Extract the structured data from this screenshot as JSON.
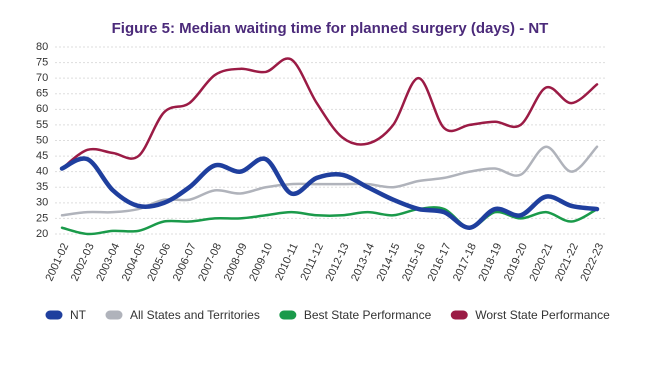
{
  "chart_data": {
    "type": "line",
    "title": "Figure 5: Median waiting time for planned surgery (days) - NT",
    "categories": [
      "2001-02",
      "2002-03",
      "2003-04",
      "2004-05",
      "2005-06",
      "2006-07",
      "2007-08",
      "2008-09",
      "2009-10",
      "2010-11",
      "2011-12",
      "2012-13",
      "2013-14",
      "2014-15",
      "2015-16",
      "2016-17",
      "2017-18",
      "2018-19",
      "2019-20",
      "2020-21",
      "2021-22",
      "2022-23"
    ],
    "series": [
      {
        "name": "NT",
        "color": "#1f3f9e",
        "values": [
          41,
          44,
          34,
          29,
          30,
          35,
          42,
          40,
          44,
          33,
          38,
          39,
          35,
          31,
          28,
          27,
          22,
          28,
          26,
          32,
          29,
          28
        ]
      },
      {
        "name": "All States and Territories",
        "color": "#b0b3bb",
        "values": [
          26,
          27,
          27,
          28,
          31,
          31,
          34,
          33,
          35,
          36,
          36,
          36,
          36,
          35,
          37,
          38,
          40,
          41,
          39,
          48,
          40,
          48
        ]
      },
      {
        "name": "Best State Performance",
        "color": "#1a9a4a",
        "values": [
          22,
          20,
          21,
          21,
          24,
          24,
          25,
          25,
          26,
          27,
          26,
          26,
          27,
          26,
          28,
          28,
          22,
          27,
          25,
          27,
          24,
          28
        ]
      },
      {
        "name": "Worst State Performance",
        "color": "#9b1b45",
        "values": [
          41,
          47,
          46,
          45,
          59,
          62,
          71,
          73,
          72,
          76,
          62,
          51,
          49,
          55,
          70,
          54,
          55,
          56,
          55,
          67,
          62,
          68
        ]
      }
    ],
    "ylim": [
      20,
      80
    ],
    "yticks": [
      20,
      25,
      30,
      35,
      40,
      45,
      50,
      55,
      60,
      65,
      70,
      75,
      80
    ],
    "grid": true
  }
}
